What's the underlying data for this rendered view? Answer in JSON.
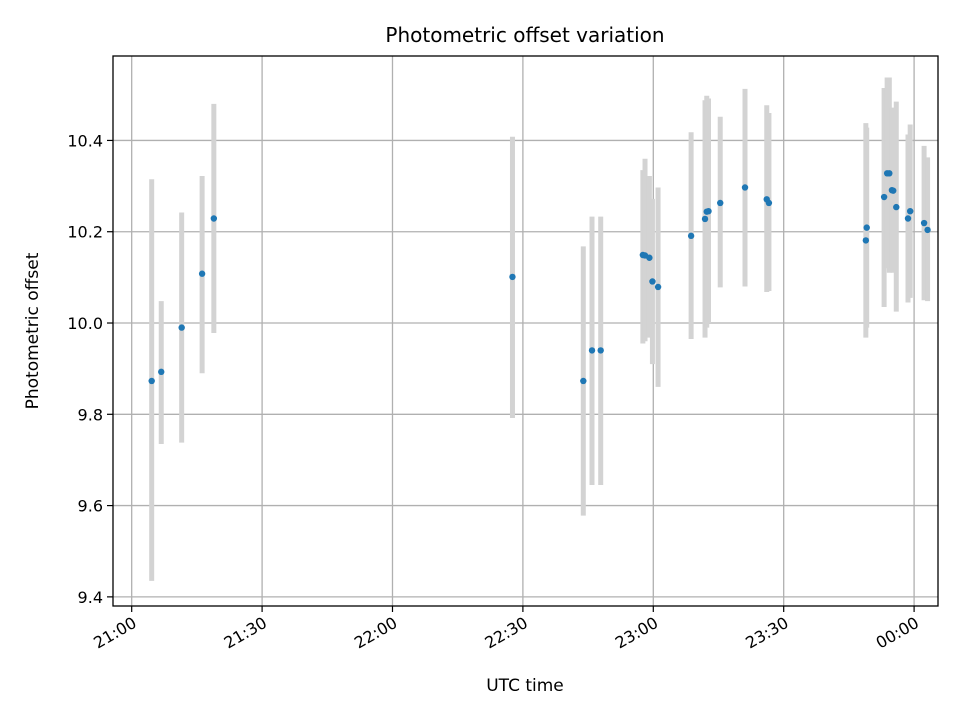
{
  "chart_data": {
    "type": "scatter",
    "title": "Photometric offset variation",
    "xlabel": "UTC time",
    "ylabel": "Photometric offset",
    "grid": true,
    "colors": {
      "point": "#1f77b4",
      "errorbar": "#d3d3d3",
      "grid": "#b0b0b0",
      "axis": "#000000"
    },
    "xlim": [
      -4.3,
      185.5
    ],
    "ylim": [
      9.38,
      10.585
    ],
    "xticks": [
      {
        "minutes": 0,
        "label": "21:00"
      },
      {
        "minutes": 30,
        "label": "21:30"
      },
      {
        "minutes": 60,
        "label": "22:00"
      },
      {
        "minutes": 90,
        "label": "22:30"
      },
      {
        "minutes": 120,
        "label": "23:00"
      },
      {
        "minutes": 150,
        "label": "23:30"
      },
      {
        "minutes": 180,
        "label": "00:00"
      }
    ],
    "yticks": [
      {
        "value": 9.4,
        "label": "9.4"
      },
      {
        "value": 9.6,
        "label": "9.6"
      },
      {
        "value": 9.8,
        "label": "9.8"
      },
      {
        "value": 10.0,
        "label": "10.0"
      },
      {
        "value": 10.2,
        "label": "10.2"
      },
      {
        "value": 10.4,
        "label": "10.4"
      }
    ],
    "points": [
      {
        "t": 4.6,
        "y": 9.873,
        "lo": 9.435,
        "hi": 10.315
      },
      {
        "t": 6.8,
        "y": 9.893,
        "lo": 9.735,
        "hi": 10.048
      },
      {
        "t": 11.5,
        "y": 9.99,
        "lo": 9.738,
        "hi": 10.242
      },
      {
        "t": 16.2,
        "y": 10.108,
        "lo": 9.89,
        "hi": 10.322
      },
      {
        "t": 18.9,
        "y": 10.229,
        "lo": 9.978,
        "hi": 10.48
      },
      {
        "t": 87.6,
        "y": 10.101,
        "lo": 9.792,
        "hi": 10.408
      },
      {
        "t": 103.9,
        "y": 9.873,
        "lo": 9.578,
        "hi": 10.168
      },
      {
        "t": 105.9,
        "y": 9.94,
        "lo": 9.645,
        "hi": 10.233
      },
      {
        "t": 107.9,
        "y": 9.94,
        "lo": 9.645,
        "hi": 10.233
      },
      {
        "t": 117.6,
        "y": 10.149,
        "lo": 9.955,
        "hi": 10.335
      },
      {
        "t": 118.1,
        "y": 10.148,
        "lo": 9.96,
        "hi": 10.36
      },
      {
        "t": 119.1,
        "y": 10.143,
        "lo": 9.968,
        "hi": 10.322
      },
      {
        "t": 119.8,
        "y": 10.091,
        "lo": 9.91,
        "hi": 10.272
      },
      {
        "t": 121.1,
        "y": 10.079,
        "lo": 9.86,
        "hi": 10.297
      },
      {
        "t": 128.7,
        "y": 10.191,
        "lo": 9.965,
        "hi": 10.418
      },
      {
        "t": 131.9,
        "y": 10.228,
        "lo": 9.968,
        "hi": 10.488
      },
      {
        "t": 132.3,
        "y": 10.244,
        "lo": 9.99,
        "hi": 10.498
      },
      {
        "t": 132.7,
        "y": 10.245,
        "lo": 10.0,
        "hi": 10.492
      },
      {
        "t": 135.4,
        "y": 10.263,
        "lo": 10.078,
        "hi": 10.452
      },
      {
        "t": 141.1,
        "y": 10.297,
        "lo": 10.08,
        "hi": 10.513
      },
      {
        "t": 146.1,
        "y": 10.271,
        "lo": 10.068,
        "hi": 10.477
      },
      {
        "t": 146.6,
        "y": 10.263,
        "lo": 10.07,
        "hi": 10.46
      },
      {
        "t": 168.9,
        "y": 10.181,
        "lo": 9.968,
        "hi": 10.438
      },
      {
        "t": 169.1,
        "y": 10.209,
        "lo": 9.99,
        "hi": 10.428
      },
      {
        "t": 173.1,
        "y": 10.276,
        "lo": 10.035,
        "hi": 10.515
      },
      {
        "t": 173.8,
        "y": 10.328,
        "lo": 10.12,
        "hi": 10.538
      },
      {
        "t": 174.3,
        "y": 10.328,
        "lo": 10.11,
        "hi": 10.538
      },
      {
        "t": 174.9,
        "y": 10.291,
        "lo": 10.12,
        "hi": 10.472
      },
      {
        "t": 175.2,
        "y": 10.29,
        "lo": 10.11,
        "hi": 10.47
      },
      {
        "t": 175.9,
        "y": 10.254,
        "lo": 10.025,
        "hi": 10.485
      },
      {
        "t": 178.6,
        "y": 10.229,
        "lo": 10.045,
        "hi": 10.413
      },
      {
        "t": 179.1,
        "y": 10.245,
        "lo": 10.055,
        "hi": 10.435
      },
      {
        "t": 182.3,
        "y": 10.219,
        "lo": 10.05,
        "hi": 10.388
      },
      {
        "t": 183.1,
        "y": 10.204,
        "lo": 10.048,
        "hi": 10.363
      }
    ]
  }
}
